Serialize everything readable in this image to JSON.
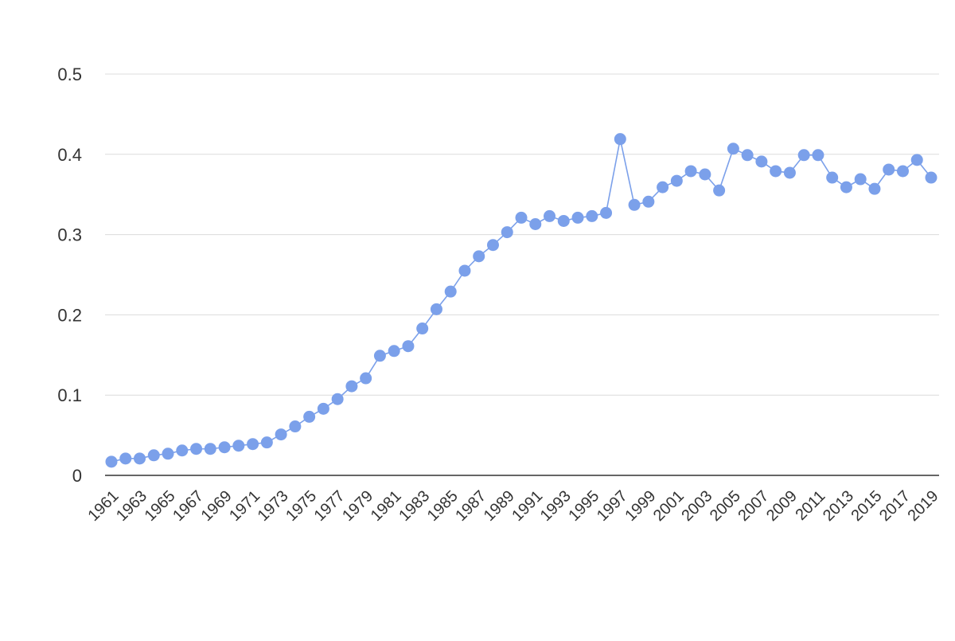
{
  "chart_data": {
    "type": "line",
    "title": "",
    "xlabel": "",
    "ylabel": "",
    "x": [
      1961,
      1962,
      1963,
      1964,
      1965,
      1966,
      1967,
      1968,
      1969,
      1970,
      1971,
      1972,
      1973,
      1974,
      1975,
      1976,
      1977,
      1978,
      1979,
      1980,
      1981,
      1982,
      1983,
      1984,
      1985,
      1986,
      1987,
      1988,
      1989,
      1990,
      1991,
      1992,
      1993,
      1994,
      1995,
      1996,
      1997,
      1998,
      1999,
      2000,
      2001,
      2002,
      2003,
      2004,
      2005,
      2006,
      2007,
      2008,
      2009,
      2010,
      2011,
      2012,
      2013,
      2014,
      2015,
      2016,
      2017,
      2018,
      2019
    ],
    "series": [
      {
        "values": [
          0.017,
          0.021,
          0.021,
          0.025,
          0.027,
          0.031,
          0.033,
          0.033,
          0.035,
          0.037,
          0.039,
          0.041,
          0.051,
          0.061,
          0.073,
          0.083,
          0.095,
          0.111,
          0.121,
          0.149,
          0.155,
          0.161,
          0.183,
          0.207,
          0.229,
          0.255,
          0.273,
          0.287,
          0.303,
          0.321,
          0.313,
          0.323,
          0.317,
          0.321,
          0.323,
          0.327,
          0.419,
          0.337,
          0.341,
          0.359,
          0.367,
          0.379,
          0.375,
          0.355,
          0.407,
          0.399,
          0.391,
          0.379,
          0.377,
          0.399,
          0.399,
          0.371,
          0.359,
          0.369,
          0.357,
          0.381,
          0.379,
          0.393,
          0.371
        ],
        "color": "#7ba0ea"
      }
    ],
    "x_tick_labels": [
      "1961",
      "1963",
      "1965",
      "1967",
      "1969",
      "1971",
      "1973",
      "1975",
      "1977",
      "1979",
      "1981",
      "1983",
      "1985",
      "1987",
      "1989",
      "1991",
      "1993",
      "1995",
      "1997",
      "1999",
      "2001",
      "2003",
      "2005",
      "2007",
      "2009",
      "2011",
      "2013",
      "2015",
      "2017",
      "2019"
    ],
    "y_ticks": [
      0,
      0.1,
      0.2,
      0.3,
      0.4,
      0.5
    ],
    "y_tick_labels": [
      "0",
      "0.1",
      "0.2",
      "0.3",
      "0.4",
      "0.5"
    ],
    "ylim": [
      0,
      0.5
    ],
    "grid": true,
    "legend": "none",
    "line_color": "#7ba0ea",
    "grid_color": "#dcdcdc",
    "axis_color": "#333333"
  }
}
